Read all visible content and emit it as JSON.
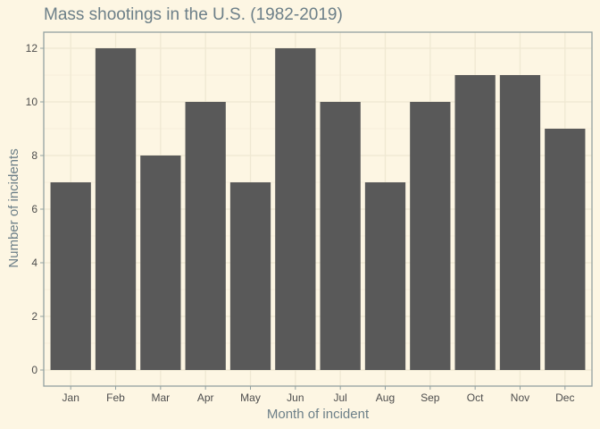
{
  "colors": {
    "background": "#fdf6e3",
    "panel_background": "#fdf6e3",
    "grid_major": "#efe8d2",
    "grid_minor": "#f6efdb",
    "bar_fill": "#595959",
    "panel_border": "#93a1a1",
    "title_text": "#6c7f88",
    "tick_text": "#4d4d4d"
  },
  "chart_data": {
    "type": "bar",
    "title": "Mass shootings in the U.S. (1982-2019)",
    "xlabel": "Month of incident",
    "ylabel": "Number of incidents",
    "categories": [
      "Jan",
      "Feb",
      "Mar",
      "Apr",
      "May",
      "Jun",
      "Jul",
      "Aug",
      "Sep",
      "Oct",
      "Nov",
      "Dec"
    ],
    "values": [
      7,
      12,
      8,
      10,
      7,
      12,
      10,
      7,
      10,
      11,
      11,
      9
    ],
    "ylim": [
      -0.6,
      12.6
    ],
    "yticks": [
      0,
      2,
      4,
      6,
      8,
      10,
      12
    ],
    "ytick_labels": [
      "0",
      "2",
      "4",
      "6",
      "8",
      "10",
      "12"
    ],
    "grid": true,
    "legend": "none"
  }
}
